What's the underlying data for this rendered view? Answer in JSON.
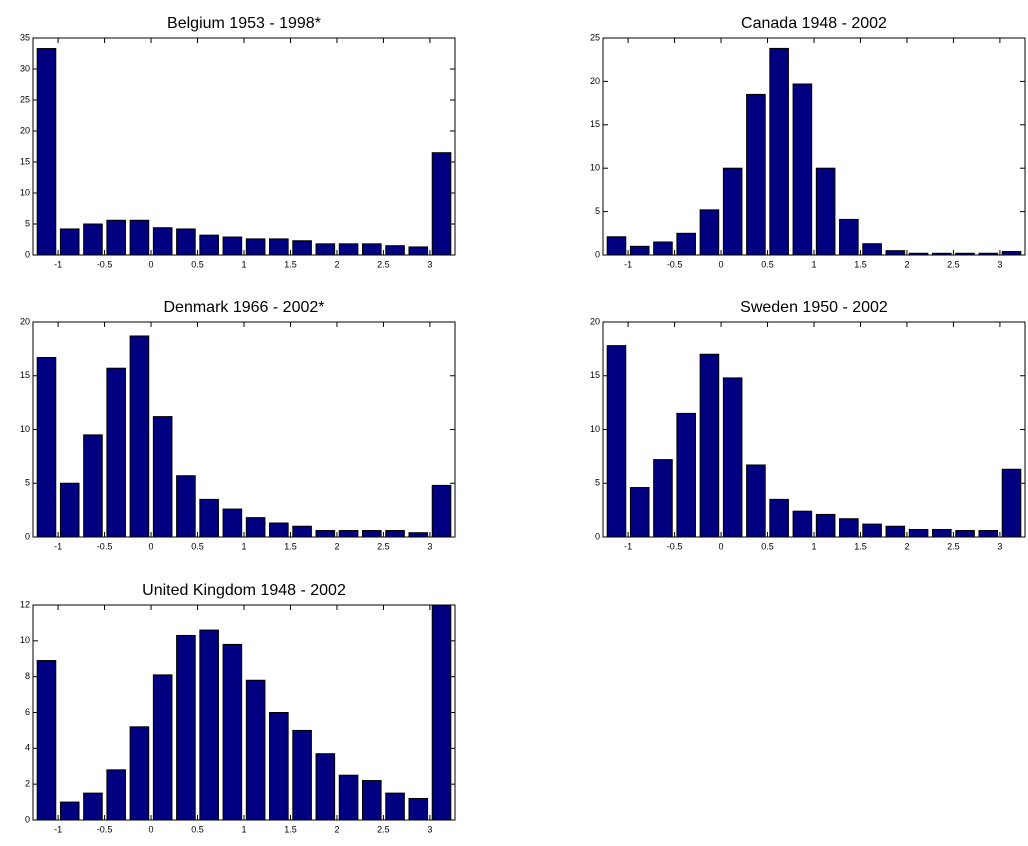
{
  "chart_data": [
    {
      "type": "histogram",
      "title": "Belgium 1953 - 1998*",
      "color": "#000080",
      "bins": [
        -1.25,
        -1,
        -0.75,
        -0.5,
        -0.25,
        0,
        0.25,
        0.5,
        0.75,
        1,
        1.25,
        1.5,
        1.75,
        2,
        2.25,
        2.5,
        2.75,
        3,
        3.25
      ],
      "values": [
        33.3,
        4.2,
        5,
        5.6,
        5.6,
        4.4,
        4.2,
        3.2,
        2.9,
        2.6,
        2.6,
        2.3,
        1.8,
        1.8,
        1.8,
        1.5,
        1.3,
        16.5
      ],
      "xlim": [
        -1.27,
        3.27
      ],
      "xticks": [
        -1,
        -0.5,
        0,
        0.5,
        1,
        1.5,
        2,
        2.5,
        3
      ],
      "ylim": [
        0,
        35
      ],
      "yticks": [
        0,
        5,
        10,
        15,
        20,
        25,
        30,
        35
      ]
    },
    {
      "type": "histogram",
      "title": "Canada 1948 - 2002",
      "color": "#000080",
      "bins": [
        -1.25,
        -1,
        -0.75,
        -0.5,
        -0.25,
        0,
        0.25,
        0.5,
        0.75,
        1,
        1.25,
        1.5,
        1.75,
        2,
        2.25,
        2.5,
        2.75,
        3,
        3.25
      ],
      "values": [
        2.1,
        1,
        1.5,
        2.5,
        5.2,
        10,
        18.5,
        23.8,
        19.7,
        10,
        4.1,
        1.3,
        0.5,
        0.2,
        0.2,
        0.2,
        0.2,
        0.4
      ],
      "xlim": [
        -1.27,
        3.27
      ],
      "xticks": [
        -1,
        -0.5,
        0,
        0.5,
        1,
        1.5,
        2,
        2.5,
        3
      ],
      "ylim": [
        0,
        25
      ],
      "yticks": [
        0,
        5,
        10,
        15,
        20,
        25
      ]
    },
    {
      "type": "histogram",
      "title": "Denmark 1966 - 2002*",
      "color": "#000080",
      "bins": [
        -1.25,
        -1,
        -0.75,
        -0.5,
        -0.25,
        0,
        0.25,
        0.5,
        0.75,
        1,
        1.25,
        1.5,
        1.75,
        2,
        2.25,
        2.5,
        2.75,
        3,
        3.25
      ],
      "values": [
        16.7,
        5,
        9.5,
        15.7,
        18.7,
        11.2,
        5.7,
        3.5,
        2.6,
        1.8,
        1.3,
        1,
        0.6,
        0.6,
        0.6,
        0.6,
        0.4,
        4.8
      ],
      "xlim": [
        -1.27,
        3.27
      ],
      "xticks": [
        -1,
        -0.5,
        0,
        0.5,
        1,
        1.5,
        2,
        2.5,
        3
      ],
      "ylim": [
        0,
        20
      ],
      "yticks": [
        0,
        5,
        10,
        15,
        20
      ]
    },
    {
      "type": "histogram",
      "title": "Sweden 1950 - 2002",
      "color": "#000080",
      "bins": [
        -1.25,
        -1,
        -0.75,
        -0.5,
        -0.25,
        0,
        0.25,
        0.5,
        0.75,
        1,
        1.25,
        1.5,
        1.75,
        2,
        2.25,
        2.5,
        2.75,
        3,
        3.25
      ],
      "values": [
        17.8,
        4.6,
        7.2,
        11.5,
        17,
        14.8,
        6.7,
        3.5,
        2.4,
        2.1,
        1.7,
        1.2,
        1,
        0.7,
        0.7,
        0.6,
        0.6,
        6.3
      ],
      "xlim": [
        -1.27,
        3.27
      ],
      "xticks": [
        -1,
        -0.5,
        0,
        0.5,
        1,
        1.5,
        2,
        2.5,
        3
      ],
      "ylim": [
        0,
        20
      ],
      "yticks": [
        0,
        5,
        10,
        15,
        20
      ]
    },
    {
      "type": "histogram",
      "title": "United Kingdom 1948 - 2002",
      "color": "#000080",
      "bins": [
        -1.25,
        -1,
        -0.75,
        -0.5,
        -0.25,
        0,
        0.25,
        0.5,
        0.75,
        1,
        1.25,
        1.5,
        1.75,
        2,
        2.25,
        2.5,
        2.75,
        3,
        3.25
      ],
      "values": [
        8.9,
        1,
        1.5,
        2.8,
        5.2,
        8.1,
        10.3,
        10.6,
        9.8,
        7.8,
        6,
        5,
        3.7,
        2.5,
        2.2,
        1.5,
        1.2,
        12
      ],
      "xlim": [
        -1.27,
        3.27
      ],
      "xticks": [
        -1,
        -0.5,
        0,
        0.5,
        1,
        1.5,
        2,
        2.5,
        3
      ],
      "ylim": [
        0,
        12
      ],
      "yticks": [
        0,
        2,
        4,
        6,
        8,
        10,
        12
      ]
    }
  ]
}
